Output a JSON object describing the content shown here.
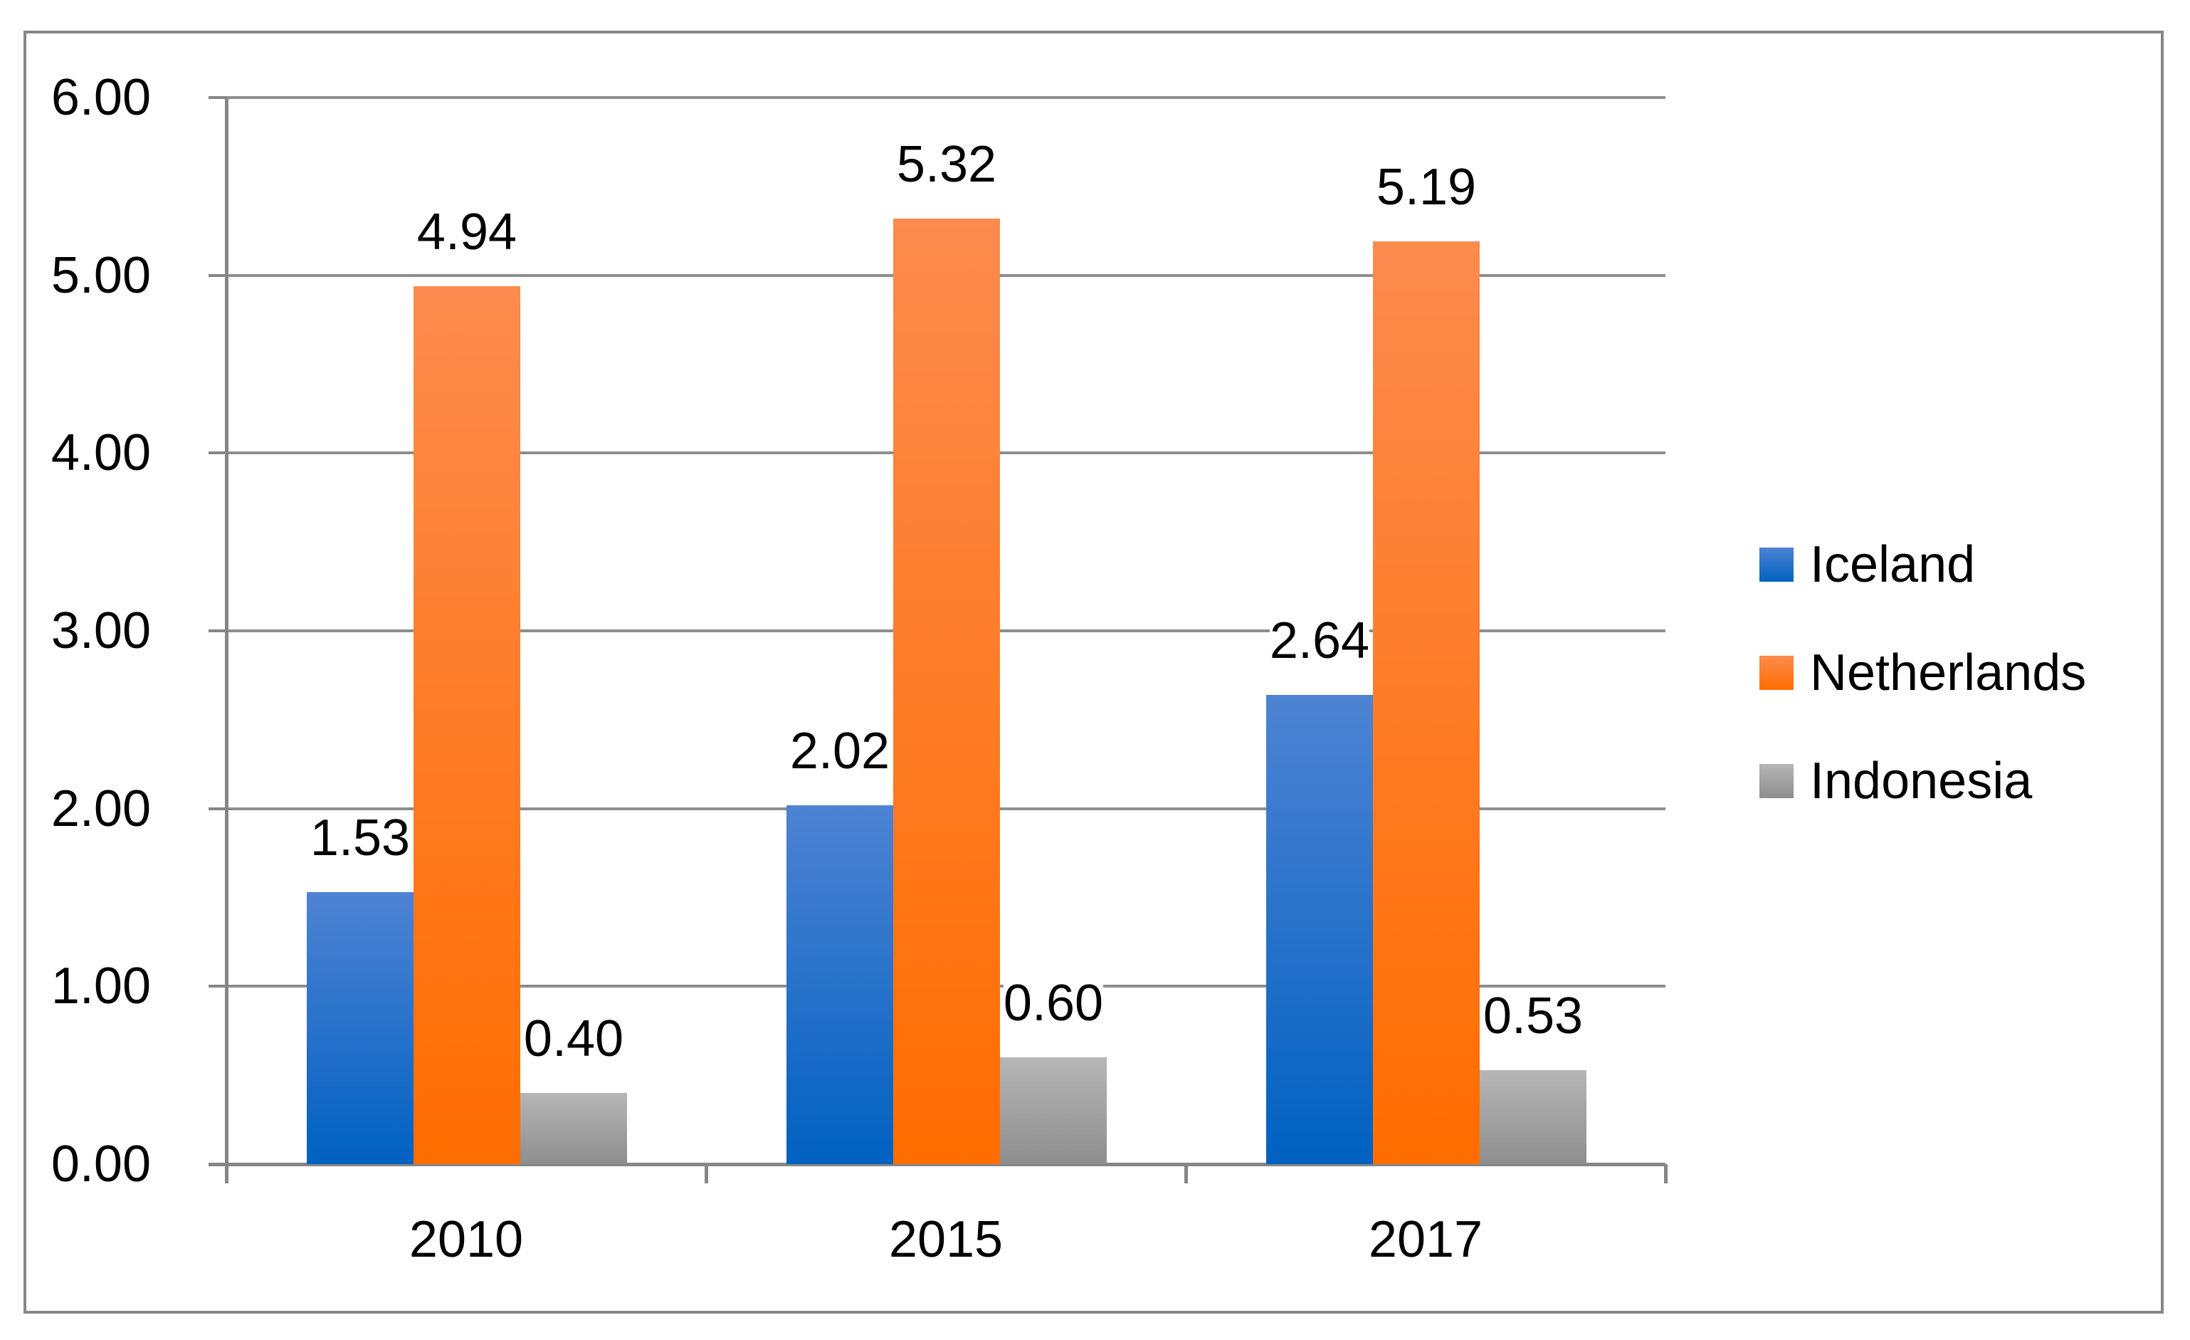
{
  "chart_data": {
    "type": "bar",
    "categories": [
      "2010",
      "2015",
      "2017"
    ],
    "series": [
      {
        "name": "Iceland",
        "values": [
          1.53,
          2.02,
          2.64
        ],
        "labels": [
          "1.53",
          "2.02",
          "2.64"
        ],
        "color_top": "#4E83D3",
        "color_bottom": "#0061C1"
      },
      {
        "name": "Netherlands",
        "values": [
          4.94,
          5.32,
          5.19
        ],
        "labels": [
          "4.94",
          "5.32",
          "5.19"
        ],
        "color_top": "#FC8B4E",
        "color_bottom": "#FF6D00"
      },
      {
        "name": "Indonesia",
        "values": [
          0.4,
          0.6,
          0.53
        ],
        "labels": [
          "0.40",
          "0.60",
          "0.53"
        ],
        "color_top": "#B6B6B6",
        "color_bottom": "#8E8E8E"
      }
    ],
    "y_axis": {
      "min": 0,
      "max": 6,
      "step": 1,
      "tick_labels": [
        "0.00",
        "1.00",
        "2.00",
        "3.00",
        "4.00",
        "5.00",
        "6.00"
      ]
    },
    "legend": {
      "position": "right",
      "entries": [
        "Iceland",
        "Netherlands",
        "Indonesia"
      ]
    },
    "grid": true
  },
  "colors": {
    "background": "#FFFFFF",
    "border": "#868686",
    "axis": "#868686",
    "gridline": "#8E8E8E",
    "label_text": "#000000"
  }
}
